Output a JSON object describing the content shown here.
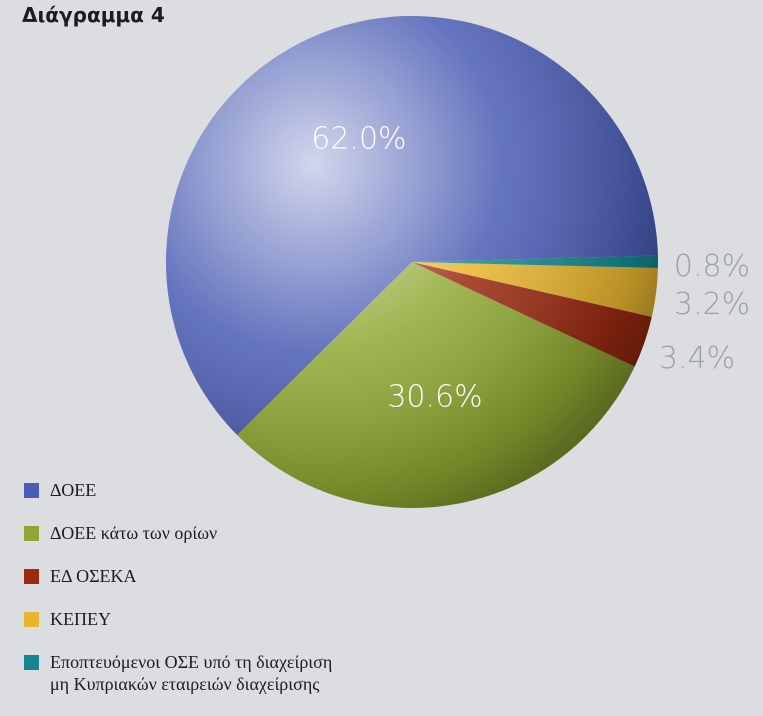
{
  "chart_data": {
    "type": "pie",
    "title": "Διάγραμμα 4",
    "categories": [
      "ΔΟΕΕ",
      "ΔΟΕΕ κάτω των ορίων",
      "ΕΔ ΟΣΕΚΑ",
      "ΚΕΠΕΥ",
      "Εποπτευόμενοι ΟΣΕ υπό τη διαχείριση μη Κυπριακών εταιρειών διαχείρισης"
    ],
    "values": [
      62.0,
      30.6,
      3.4,
      3.2,
      0.8
    ],
    "value_labels": [
      "62.0%",
      "30.6%",
      "3.4%",
      "3.2%",
      "0.8%"
    ],
    "colors": [
      "#4a5cb3",
      "#8fa832",
      "#9b2a12",
      "#e8b52e",
      "#12878f"
    ],
    "legend": "bottom-left"
  }
}
